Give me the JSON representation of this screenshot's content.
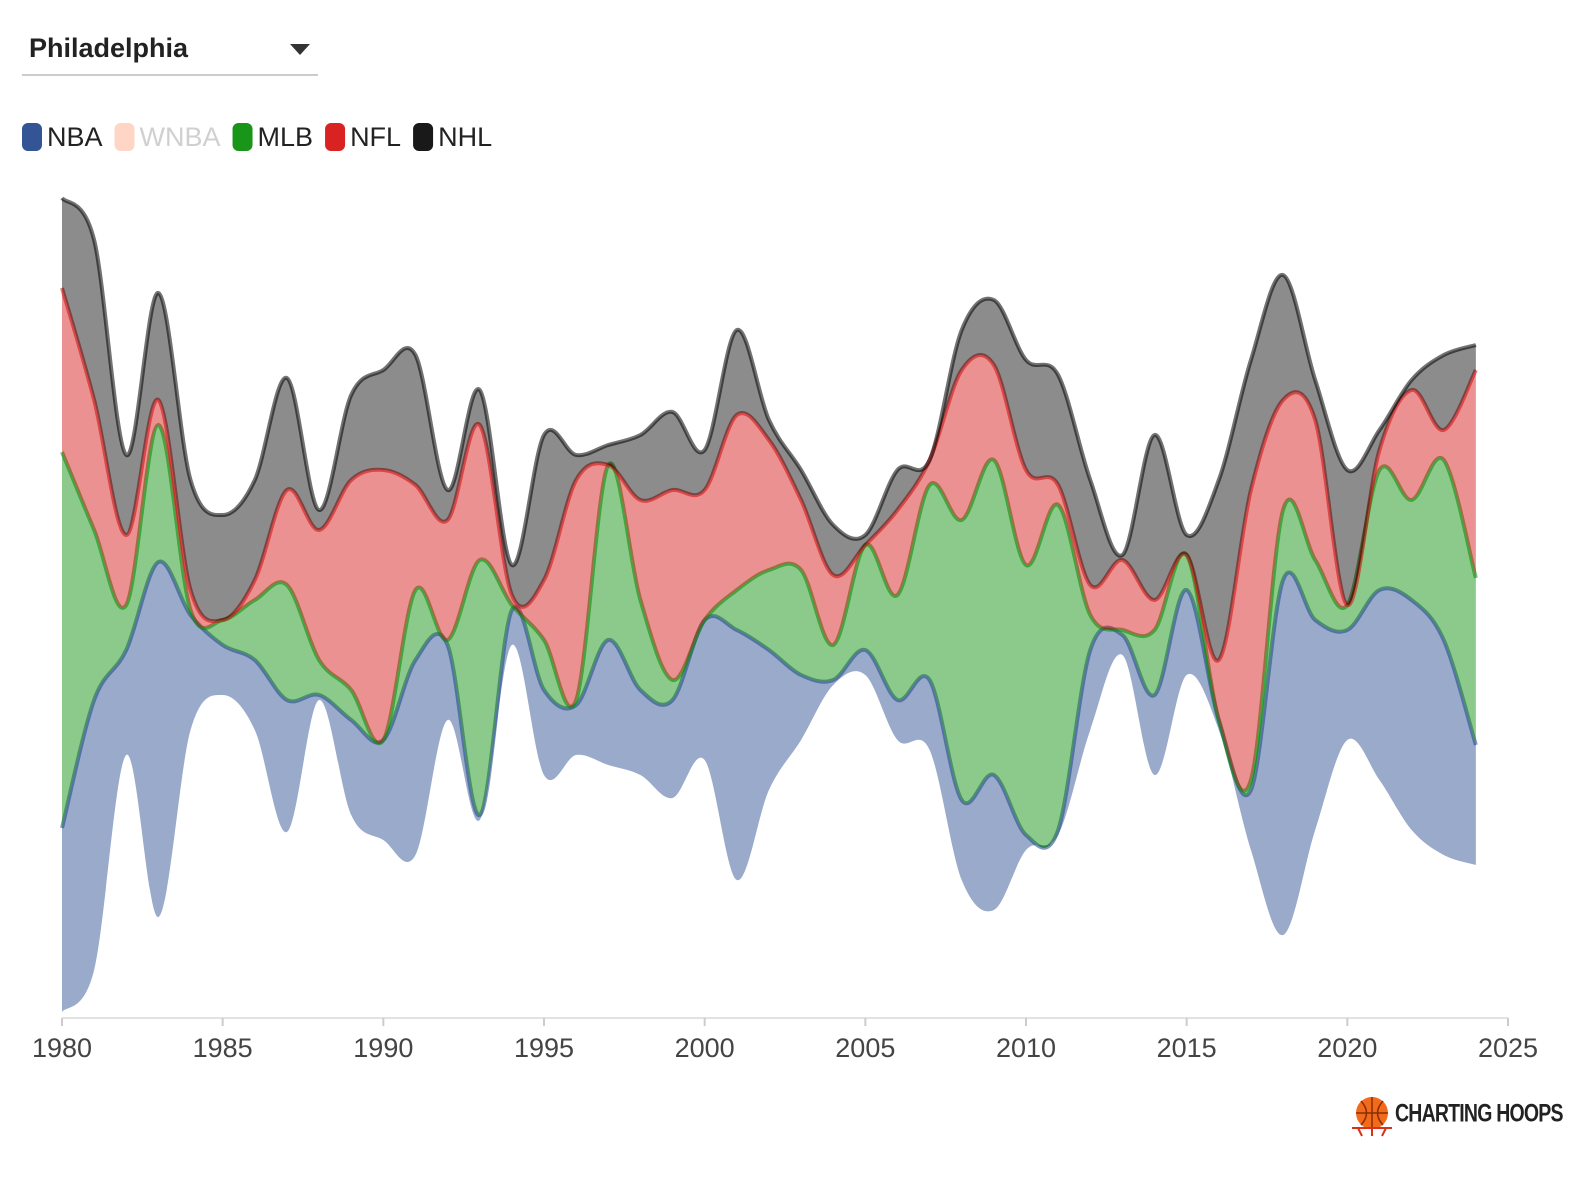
{
  "dropdown": {
    "label": "Philadelphia"
  },
  "chart_data": {
    "type": "streamgraph",
    "offset": "silhouette",
    "x": [
      1980,
      1981,
      1982,
      1983,
      1984,
      1985,
      1986,
      1987,
      1988,
      1989,
      1990,
      1991,
      1992,
      1993,
      1994,
      1995,
      1996,
      1997,
      1998,
      1999,
      2000,
      2001,
      2002,
      2003,
      2004,
      2005,
      2006,
      2007,
      2008,
      2009,
      2010,
      2011,
      2012,
      2013,
      2014,
      2015,
      2016,
      2017,
      2018,
      2019,
      2020,
      2021,
      2022,
      2023,
      2024
    ],
    "xlim": [
      1980,
      2025
    ],
    "xticks": [
      1980,
      1985,
      1990,
      1995,
      2000,
      2005,
      2010,
      2015,
      2020,
      2025
    ],
    "ylim": [
      -45,
      45
    ],
    "series": [
      {
        "name": "NBA",
        "color": "#1d428a",
        "values": [
          18.4,
          27,
          10.5,
          35.5,
          11.5,
          5,
          7,
          13.2,
          0.5,
          9.5,
          10,
          19.5,
          7.5,
          0.5,
          3.5,
          8.5,
          5,
          12.5,
          8.5,
          9.8,
          14,
          25,
          14,
          6.5,
          0.5,
          2.5,
          4,
          7,
          8,
          13.5,
          1.5,
          0.5,
          8,
          2,
          8,
          8.5,
          1,
          6,
          35.5,
          21,
          11,
          19,
          23,
          21.5,
          12
        ]
      },
      {
        "name": "WNBA",
        "color": "#ffd5c6",
        "disabled": true,
        "values": [
          0,
          0,
          0,
          0,
          0,
          0,
          0,
          0,
          0,
          0,
          0,
          0,
          0,
          0,
          0,
          0,
          0,
          0,
          0,
          0,
          0,
          0,
          0,
          0,
          0,
          0,
          0,
          0,
          0,
          0,
          0,
          0,
          0,
          0,
          0,
          0,
          0,
          0,
          0,
          0,
          0,
          0,
          0,
          0,
          0
        ]
      },
      {
        "name": "MLB",
        "color": "#008a00",
        "values": [
          37.6,
          17,
          4.5,
          13.7,
          0.5,
          2.5,
          6,
          11.5,
          3.5,
          3,
          0,
          7,
          0.5,
          25.5,
          0.5,
          5,
          0.5,
          17.5,
          9,
          2,
          0,
          4,
          8,
          10.5,
          3.5,
          10.5,
          10.5,
          19.5,
          28,
          31.5,
          27,
          32.5,
          3.5,
          0.5,
          6.5,
          3.5,
          0,
          1,
          7,
          6,
          2.5,
          12,
          10,
          18,
          16.7
        ]
      },
      {
        "name": "NFL",
        "color": "#d50a0a",
        "values": [
          16.4,
          13,
          7,
          2.5,
          2,
          0,
          2,
          9.5,
          13,
          21,
          27,
          10.5,
          12,
          13.5,
          1,
          6,
          22,
          0,
          10,
          19,
          13,
          17.5,
          13,
          7,
          7,
          0,
          8.5,
          2.5,
          15,
          9.5,
          9.5,
          2,
          3,
          7,
          3,
          0,
          6,
          29,
          11,
          14,
          0,
          2,
          11,
          3,
          20.8
        ]
      },
      {
        "name": "NHL",
        "color": "#000000",
        "values": [
          9,
          16,
          8,
          10.7,
          11,
          10.5,
          10,
          11.2,
          2,
          8.5,
          10,
          13,
          3,
          3.5,
          3,
          14.5,
          2.5,
          2,
          6.5,
          7.8,
          4,
          8.5,
          2,
          3,
          5,
          1,
          4,
          0,
          4,
          6.5,
          11,
          11,
          10.5,
          0.5,
          16.5,
          2,
          18,
          13,
          12.5,
          4,
          13.5,
          2,
          1,
          7.5,
          2.5
        ]
      }
    ]
  },
  "logo": {
    "text": "CHARTING HOOPS"
  }
}
